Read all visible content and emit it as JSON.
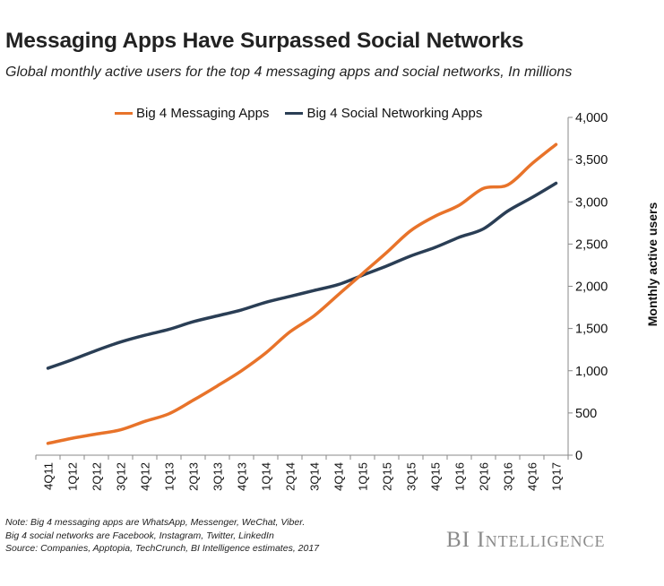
{
  "header": {
    "title": "Messaging Apps Have Surpassed Social Networks",
    "subtitle": "Global monthly active users for the top 4 messaging apps and social networks, In millions"
  },
  "notes": [
    "Note: Big 4 messaging apps are WhatsApp, Messenger, WeChat, Viber.",
    "Big 4 social networks are Facebook, Instagram, Twitter, LinkedIn",
    "Source: Companies,  Apptopia, TechCrunch,  BI Intelligence estimates, 2017"
  ],
  "brand": {
    "text": "BI Intelligence"
  },
  "colors": {
    "messaging": "#e8732a",
    "social": "#2a3e55",
    "axis": "#888888"
  },
  "chart_data": {
    "type": "line",
    "title": "Messaging Apps Have Surpassed Social Networks",
    "xlabel": "",
    "ylabel": "Monthly active users",
    "ylim": [
      0,
      4000
    ],
    "yticks": [
      0,
      500,
      1000,
      1500,
      2000,
      2500,
      3000,
      3500,
      4000
    ],
    "ytick_labels": [
      "0",
      "500",
      "1,000",
      "1,500",
      "2,000",
      "2,500",
      "3,000",
      "3,500",
      "4,000"
    ],
    "y_axis_position": "right",
    "grid": false,
    "legend_position": "top",
    "categories": [
      "4Q11",
      "1Q12",
      "2Q12",
      "3Q12",
      "4Q12",
      "1Q13",
      "2Q13",
      "3Q13",
      "4Q13",
      "1Q14",
      "2Q14",
      "3Q14",
      "4Q14",
      "1Q15",
      "2Q15",
      "3Q15",
      "4Q15",
      "1Q16",
      "2Q16",
      "3Q16",
      "4Q16",
      "1Q17"
    ],
    "series": [
      {
        "name": "Big 4 Messaging Apps",
        "color": "#e8732a",
        "values": [
          140,
          200,
          250,
          300,
          400,
          490,
          650,
          820,
          1000,
          1210,
          1460,
          1650,
          1900,
          2150,
          2400,
          2660,
          2830,
          2960,
          3160,
          3200,
          3450,
          3680
        ]
      },
      {
        "name": "Big 4 Social Networking Apps",
        "color": "#2a3e55",
        "values": [
          1030,
          1130,
          1240,
          1340,
          1420,
          1490,
          1580,
          1650,
          1720,
          1810,
          1880,
          1950,
          2020,
          2130,
          2240,
          2360,
          2460,
          2580,
          2680,
          2890,
          3050,
          3220
        ]
      }
    ]
  }
}
